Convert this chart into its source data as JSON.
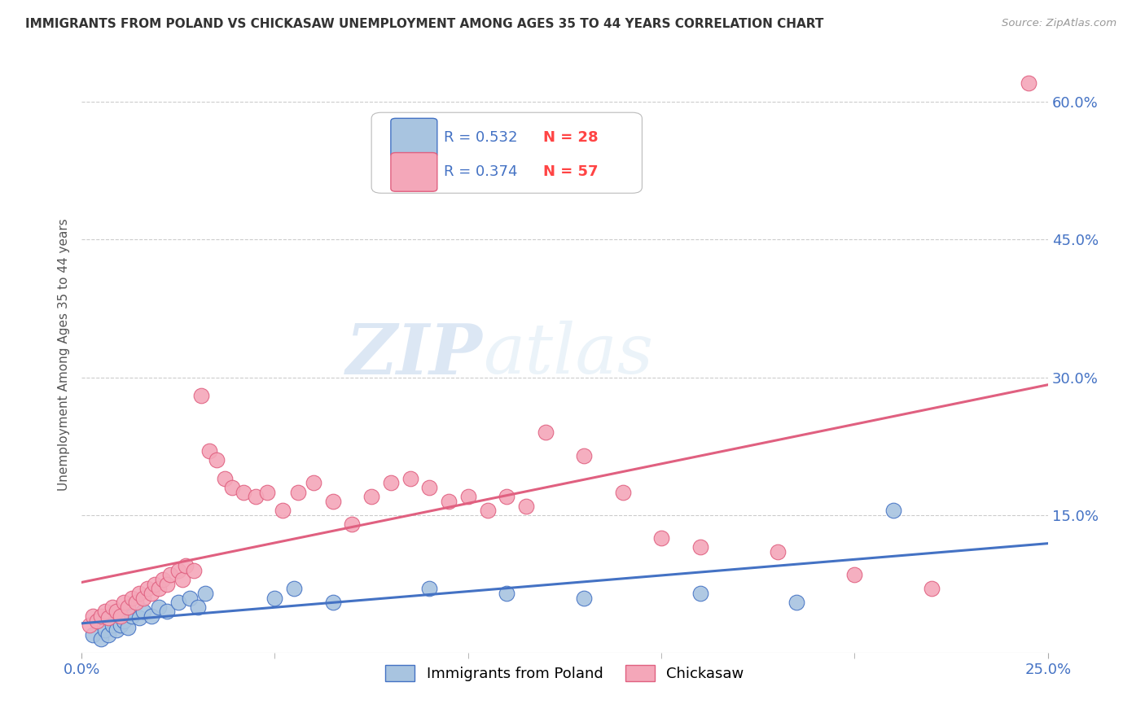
{
  "title": "IMMIGRANTS FROM POLAND VS CHICKASAW UNEMPLOYMENT AMONG AGES 35 TO 44 YEARS CORRELATION CHART",
  "source": "Source: ZipAtlas.com",
  "ylabel": "Unemployment Among Ages 35 to 44 years",
  "xlim": [
    0.0,
    0.25
  ],
  "ylim": [
    0.0,
    0.65
  ],
  "xticks": [
    0.0,
    0.25
  ],
  "xtick_labels": [
    "0.0%",
    "25.0%"
  ],
  "ytick_positions": [
    0.0,
    0.15,
    0.3,
    0.45,
    0.6
  ],
  "ytick_labels": [
    "",
    "15.0%",
    "30.0%",
    "45.0%",
    "60.0%"
  ],
  "grid_color": "#cccccc",
  "background_color": "#ffffff",
  "poland_color": "#a8c4e0",
  "poland_line_color": "#4472c4",
  "chickasaw_color": "#f4a7b9",
  "chickasaw_line_color": "#e06080",
  "poland_R": 0.532,
  "poland_N": 28,
  "chickasaw_R": 0.374,
  "chickasaw_N": 57,
  "poland_scatter_x": [
    0.003,
    0.005,
    0.006,
    0.007,
    0.008,
    0.009,
    0.01,
    0.011,
    0.012,
    0.013,
    0.015,
    0.016,
    0.018,
    0.02,
    0.022,
    0.025,
    0.028,
    0.03,
    0.032,
    0.05,
    0.055,
    0.065,
    0.09,
    0.11,
    0.13,
    0.16,
    0.185,
    0.21
  ],
  "poland_scatter_y": [
    0.02,
    0.015,
    0.025,
    0.02,
    0.03,
    0.025,
    0.03,
    0.035,
    0.028,
    0.04,
    0.038,
    0.045,
    0.04,
    0.05,
    0.045,
    0.055,
    0.06,
    0.05,
    0.065,
    0.06,
    0.07,
    0.055,
    0.07,
    0.065,
    0.06,
    0.065,
    0.055,
    0.155
  ],
  "chickasaw_scatter_x": [
    0.002,
    0.003,
    0.004,
    0.005,
    0.006,
    0.007,
    0.008,
    0.009,
    0.01,
    0.011,
    0.012,
    0.013,
    0.014,
    0.015,
    0.016,
    0.017,
    0.018,
    0.019,
    0.02,
    0.021,
    0.022,
    0.023,
    0.025,
    0.026,
    0.027,
    0.029,
    0.031,
    0.033,
    0.035,
    0.037,
    0.039,
    0.042,
    0.045,
    0.048,
    0.052,
    0.056,
    0.06,
    0.065,
    0.07,
    0.075,
    0.08,
    0.085,
    0.09,
    0.095,
    0.1,
    0.105,
    0.11,
    0.115,
    0.12,
    0.13,
    0.14,
    0.15,
    0.16,
    0.18,
    0.2,
    0.22,
    0.245
  ],
  "chickasaw_scatter_y": [
    0.03,
    0.04,
    0.035,
    0.04,
    0.045,
    0.038,
    0.05,
    0.045,
    0.04,
    0.055,
    0.05,
    0.06,
    0.055,
    0.065,
    0.06,
    0.07,
    0.065,
    0.075,
    0.07,
    0.08,
    0.075,
    0.085,
    0.09,
    0.08,
    0.095,
    0.09,
    0.28,
    0.22,
    0.21,
    0.19,
    0.18,
    0.175,
    0.17,
    0.175,
    0.155,
    0.175,
    0.185,
    0.165,
    0.14,
    0.17,
    0.185,
    0.19,
    0.18,
    0.165,
    0.17,
    0.155,
    0.17,
    0.16,
    0.24,
    0.215,
    0.175,
    0.125,
    0.115,
    0.11,
    0.085,
    0.07,
    0.62
  ],
  "watermark_zip": "ZIP",
  "watermark_atlas": "atlas",
  "legend_text_color_r": "#4472c4",
  "legend_text_color_n": "#ff4444"
}
